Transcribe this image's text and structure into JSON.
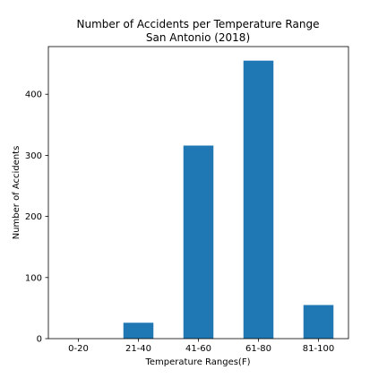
{
  "chart_data": {
    "type": "bar",
    "title": "Number of Accidents per Temperature Range",
    "subtitle": "San Antonio (2018)",
    "xlabel": "Temperature Ranges(F)",
    "ylabel": "Number of Accidents",
    "categories": [
      "0-20",
      "21-40",
      "41-60",
      "61-80",
      "81-100"
    ],
    "values": [
      0,
      26,
      316,
      455,
      55
    ],
    "ylim": [
      0,
      478
    ],
    "yticks": [
      0,
      100,
      200,
      300,
      400
    ],
    "bar_color": "#1f77b4",
    "grid": false,
    "legend": "none"
  }
}
